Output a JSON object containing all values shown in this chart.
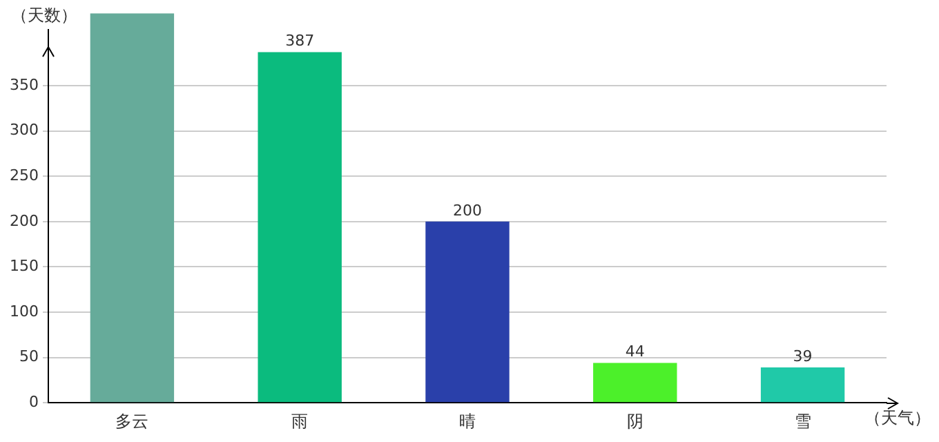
{
  "chart_data": {
    "type": "bar",
    "ylabel": "（天数）",
    "xlabel": "（天气）",
    "categories": [
      "多云",
      "雨",
      "晴",
      "阴",
      "雪"
    ],
    "values": [
      430,
      387,
      200,
      44,
      39
    ],
    "colors": [
      "#66ab9a",
      "#0bbb7e",
      "#2a40aa",
      "#4cf02a",
      "#20c9a8"
    ],
    "value_labels": [
      null,
      "387",
      "200",
      "44",
      "39"
    ],
    "ylim": [
      0,
      430
    ],
    "yticks": [
      0,
      50,
      100,
      150,
      200,
      250,
      300,
      350
    ],
    "grid": "y"
  }
}
